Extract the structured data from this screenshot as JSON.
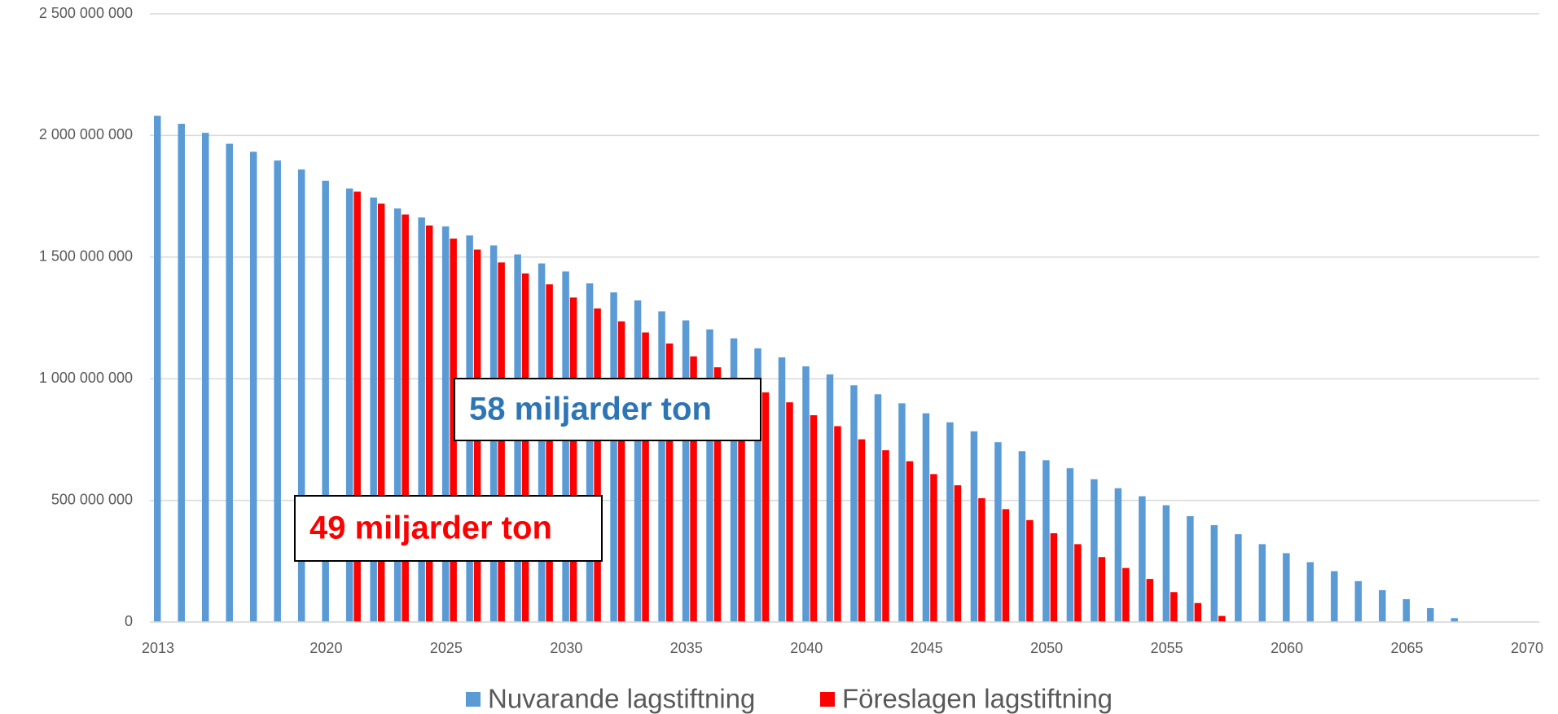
{
  "chart_data": {
    "type": "bar",
    "x": [
      2013,
      2014,
      2015,
      2016,
      2017,
      2018,
      2019,
      2020,
      2021,
      2022,
      2023,
      2024,
      2025,
      2026,
      2027,
      2028,
      2029,
      2030,
      2031,
      2032,
      2033,
      2034,
      2035,
      2036,
      2037,
      2038,
      2039,
      2040,
      2041,
      2042,
      2043,
      2044,
      2045,
      2046,
      2047,
      2048,
      2049,
      2050,
      2051,
      2052,
      2053,
      2054,
      2055,
      2056,
      2057,
      2058,
      2059,
      2060,
      2061,
      2062,
      2063,
      2064,
      2065,
      2066,
      2067
    ],
    "series": [
      {
        "name": "Nuvarande lagstiftning",
        "color": "#5b9bd5",
        "values": [
          2081000000,
          2048000000,
          2011000000,
          1966000000,
          1933000000,
          1897000000,
          1860000000,
          1814000000,
          1782000000,
          1745000000,
          1700000000,
          1663000000,
          1626000000,
          1589000000,
          1548000000,
          1511000000,
          1474000000,
          1441000000,
          1392000000,
          1355000000,
          1322000000,
          1277000000,
          1240000000,
          1203000000,
          1166000000,
          1125000000,
          1088000000,
          1051000000,
          1018000000,
          973000000,
          936000000,
          899000000,
          858000000,
          821000000,
          784000000,
          739000000,
          702000000,
          665000000,
          632000000,
          587000000,
          550000000,
          517000000,
          480000000,
          435000000,
          398000000,
          361000000,
          320000000,
          283000000,
          246000000,
          209000000,
          168000000,
          131000000,
          94000000,
          57000000,
          16000000
        ]
      },
      {
        "name": "Föreslagen lagstiftning",
        "color": "#ff0000",
        "values": [
          null,
          null,
          null,
          null,
          null,
          null,
          null,
          null,
          1769000000,
          1720000000,
          1675000000,
          1630000000,
          1576000000,
          1531000000,
          1478000000,
          1433000000,
          1388000000,
          1334000000,
          1289000000,
          1236000000,
          1190000000,
          1145000000,
          1092000000,
          1047000000,
          995000000,
          944000000,
          903000000,
          850000000,
          805000000,
          751000000,
          706000000,
          661000000,
          608000000,
          562000000,
          509000000,
          464000000,
          419000000,
          365000000,
          320000000,
          267000000,
          222000000,
          177000000,
          123000000,
          78000000,
          25000000,
          null,
          null,
          null,
          null,
          null,
          null,
          null,
          null,
          null,
          null
        ]
      }
    ],
    "xlim": [
      2013,
      2070
    ],
    "xticks": [
      2013,
      2020,
      2025,
      2030,
      2035,
      2040,
      2045,
      2050,
      2055,
      2060,
      2065,
      2070
    ],
    "ylim": [
      0,
      2500000000
    ],
    "yticks": [
      0,
      {
        "value": 500000000,
        "label": "500 000 000"
      },
      {
        "value": 1000000000,
        "label": "1 000 000 000"
      },
      {
        "value": 1500000000,
        "label": "1 500 000 000"
      },
      {
        "value": 2000000000,
        "label": "2 000 000 000"
      },
      {
        "value": 2500000000,
        "label": "2 500 000 000"
      }
    ],
    "grid": true,
    "legend": "bottom",
    "annotations": [
      {
        "text": "58 miljarder ton",
        "color": "#2e75b6"
      },
      {
        "text": "49 miljarder ton",
        "color": "#ff0000"
      }
    ]
  }
}
